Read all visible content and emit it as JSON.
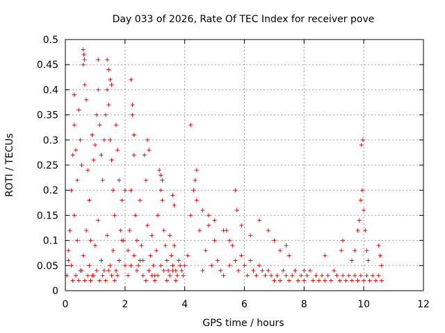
{
  "chart_data": {
    "type": "scatter",
    "title": "Day 033 of 2026, Rate Of TEC Index for receiver pove",
    "xlabel": "GPS time / hours",
    "ylabel": "ROTI / TECUs",
    "xlim": [
      0,
      12
    ],
    "ylim": [
      0,
      0.5
    ],
    "xticks": [
      "0",
      "2",
      "4",
      "6",
      "8",
      "10",
      "12"
    ],
    "yticks": [
      "0",
      "0.05",
      "0.1",
      "0.15",
      "0.2",
      "0.25",
      "0.3",
      "0.35",
      "0.4",
      "0.45",
      "0.5"
    ],
    "grid": true,
    "marker": "plus",
    "color": "#ff0000",
    "series": [
      {
        "x": [
          0.05,
          0.1,
          0.15,
          0.2,
          0.25,
          0.3,
          0.35,
          0.4,
          0.45,
          0.5,
          0.55,
          0.6,
          0.65,
          0.7,
          0.75,
          0.8,
          0.85,
          0.9,
          0.95,
          1.0,
          1.05,
          1.1,
          1.15,
          1.2,
          1.25,
          1.3,
          1.35,
          1.4,
          1.45,
          1.5,
          1.55,
          1.6,
          1.65,
          1.7,
          1.75,
          1.8,
          1.85,
          1.9,
          1.95,
          2.0,
          0.1,
          0.2,
          0.3,
          0.4,
          0.5,
          0.6,
          0.7,
          0.8,
          0.9,
          1.0,
          1.1,
          1.2,
          1.3,
          1.4,
          1.5,
          1.6,
          1.7,
          1.8,
          1.9,
          2.0,
          0.25,
          0.35,
          0.45,
          0.55,
          0.65,
          0.75,
          0.85,
          0.95,
          1.05,
          1.15,
          1.25,
          1.35,
          1.45,
          1.55,
          1.65,
          1.75,
          0.3,
          0.6,
          0.62,
          0.64,
          1.1,
          1.4,
          1.45,
          1.5,
          1.55,
          2.1,
          2.15,
          2.2,
          2.25,
          2.3,
          2.35,
          2.4,
          2.45,
          2.5,
          2.55,
          2.6,
          2.65,
          2.7,
          2.75,
          2.8,
          2.85,
          2.9,
          2.95,
          3.0,
          3.05,
          3.1,
          3.15,
          3.2,
          3.25,
          3.3,
          3.35,
          3.4,
          3.45,
          3.5,
          3.55,
          3.6,
          3.65,
          3.7,
          3.75,
          3.8,
          3.85,
          3.9,
          3.95,
          2.1,
          2.2,
          2.3,
          2.4,
          2.5,
          2.6,
          2.7,
          2.8,
          2.9,
          3.0,
          3.1,
          3.2,
          3.3,
          3.4,
          3.5,
          3.6,
          3.7,
          2.2,
          2.25,
          2.3,
          2.75,
          2.8,
          3.2,
          3.25,
          3.6,
          3.65,
          4.0,
          4.1,
          4.2,
          4.3,
          4.4,
          4.5,
          4.6,
          4.7,
          4.8,
          4.9,
          5.0,
          5.1,
          5.2,
          5.3,
          5.4,
          5.5,
          5.6,
          5.7,
          5.8,
          5.9,
          6.0,
          6.1,
          6.2,
          6.3,
          6.4,
          6.5,
          6.6,
          6.7,
          6.8,
          6.9,
          7.0,
          4.2,
          4.35,
          4.4,
          4.6,
          4.8,
          5.0,
          5.3,
          5.5,
          5.7,
          5.75,
          5.9,
          6.2,
          6.5,
          6.8,
          7.0,
          7.2,
          7.4,
          7.5,
          7.1,
          7.2,
          7.3,
          7.4,
          7.5,
          7.6,
          7.7,
          7.8,
          7.9,
          8.0,
          8.1,
          8.2,
          8.3,
          8.4,
          8.5,
          8.6,
          8.7,
          8.8,
          8.9,
          9.0,
          9.1,
          9.2,
          9.3,
          9.4,
          9.5,
          9.6,
          9.7,
          9.8,
          9.9,
          10.0,
          10.1,
          10.2,
          10.3,
          10.4,
          10.5,
          10.6,
          9.6,
          9.7,
          9.8,
          9.85,
          9.9,
          9.95,
          10.0,
          10.05,
          10.1,
          10.15,
          9.92,
          9.97,
          10.5,
          10.55,
          10.6,
          9.25,
          9.3,
          8.7,
          8.0
        ],
        "y": [
          0.03,
          0.08,
          0.12,
          0.2,
          0.27,
          0.33,
          0.28,
          0.22,
          0.36,
          0.3,
          0.25,
          0.45,
          0.41,
          0.38,
          0.24,
          0.18,
          0.1,
          0.31,
          0.26,
          0.29,
          0.35,
          0.4,
          0.33,
          0.27,
          0.22,
          0.3,
          0.35,
          0.4,
          0.37,
          0.3,
          0.26,
          0.2,
          0.15,
          0.33,
          0.28,
          0.22,
          0.12,
          0.18,
          0.1,
          0.2,
          0.06,
          0.05,
          0.15,
          0.1,
          0.04,
          0.07,
          0.12,
          0.05,
          0.03,
          0.09,
          0.14,
          0.06,
          0.04,
          0.11,
          0.05,
          0.08,
          0.04,
          0.06,
          0.1,
          0.05,
          0.02,
          0.03,
          0.02,
          0.04,
          0.02,
          0.03,
          0.02,
          0.03,
          0.04,
          0.02,
          0.03,
          0.02,
          0.04,
          0.03,
          0.02,
          0.03,
          0.39,
          0.48,
          0.47,
          0.46,
          0.46,
          0.46,
          0.44,
          0.42,
          0.41,
          0.08,
          0.12,
          0.2,
          0.35,
          0.27,
          0.15,
          0.1,
          0.05,
          0.18,
          0.09,
          0.06,
          0.27,
          0.22,
          0.13,
          0.04,
          0.07,
          0.11,
          0.05,
          0.03,
          0.08,
          0.15,
          0.24,
          0.2,
          0.18,
          0.12,
          0.09,
          0.06,
          0.04,
          0.11,
          0.07,
          0.05,
          0.09,
          0.04,
          0.03,
          0.06,
          0.05,
          0.04,
          0.03,
          0.03,
          0.05,
          0.07,
          0.04,
          0.06,
          0.03,
          0.02,
          0.04,
          0.03,
          0.02,
          0.03,
          0.05,
          0.04,
          0.02,
          0.03,
          0.04,
          0.02,
          0.42,
          0.37,
          0.31,
          0.3,
          0.28,
          0.23,
          0.22,
          0.19,
          0.17,
          0.05,
          0.07,
          0.15,
          0.2,
          0.24,
          0.12,
          0.04,
          0.08,
          0.13,
          0.05,
          0.1,
          0.06,
          0.04,
          0.03,
          0.12,
          0.05,
          0.09,
          0.06,
          0.04,
          0.07,
          0.05,
          0.03,
          0.06,
          0.04,
          0.03,
          0.05,
          0.04,
          0.03,
          0.04,
          0.03,
          0.02,
          0.33,
          0.22,
          0.18,
          0.16,
          0.15,
          0.14,
          0.12,
          0.1,
          0.2,
          0.16,
          0.13,
          0.11,
          0.14,
          0.12,
          0.1,
          0.08,
          0.09,
          0.07,
          0.03,
          0.02,
          0.04,
          0.03,
          0.02,
          0.03,
          0.04,
          0.02,
          0.03,
          0.02,
          0.03,
          0.04,
          0.02,
          0.03,
          0.02,
          0.03,
          0.02,
          0.03,
          0.02,
          0.04,
          0.03,
          0.02,
          0.03,
          0.02,
          0.03,
          0.02,
          0.03,
          0.02,
          0.03,
          0.02,
          0.03,
          0.02,
          0.03,
          0.02,
          0.03,
          0.02,
          0.06,
          0.08,
          0.12,
          0.14,
          0.18,
          0.2,
          0.16,
          0.12,
          0.08,
          0.06,
          0.29,
          0.3,
          0.09,
          0.07,
          0.05,
          0.08,
          0.1,
          0.07,
          0.04
        ]
      }
    ]
  }
}
